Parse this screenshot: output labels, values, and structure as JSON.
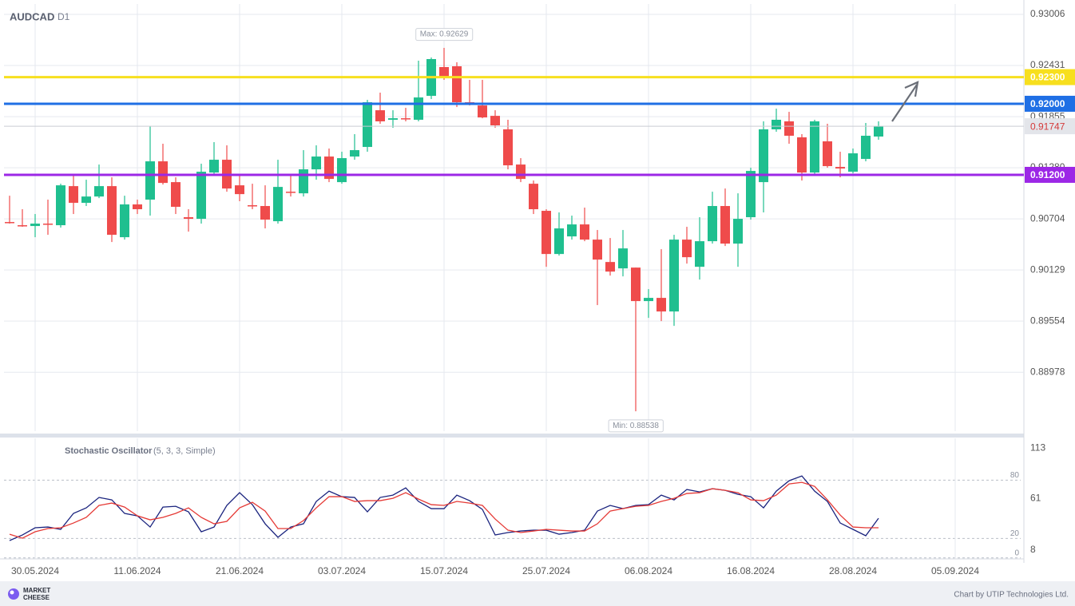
{
  "chart_data": [
    {
      "type": "candlestick",
      "title": "AUDCAD",
      "subtitle": "D1",
      "open": [
        0.90669,
        0.90633,
        0.90624,
        0.90651,
        0.90633,
        0.91073,
        0.90885,
        0.90956,
        0.91073,
        0.90498,
        0.90867,
        0.90921,
        0.91352,
        0.91118,
        0.90723,
        0.90705,
        0.91226,
        0.9137,
        0.91082,
        0.90858,
        0.90849,
        0.90678,
        0.9101,
        0.90992,
        0.91262,
        0.91406,
        0.91118,
        0.91406,
        0.91514,
        0.91927,
        0.9182,
        0.91837,
        0.9182,
        0.92089,
        0.92413,
        0.92422,
        0.92017,
        0.91981,
        0.91864,
        0.91712,
        0.91316,
        0.911,
        0.90795,
        0.90309,
        0.90507,
        0.90642,
        0.90471,
        0.90219,
        0.90147,
        0.90156,
        0.89779,
        0.89815,
        0.89662,
        0.90471,
        0.90165,
        0.90453,
        0.90849,
        0.90426,
        0.90723,
        0.91118,
        0.91712,
        0.91802,
        0.91622,
        0.91226,
        0.91577,
        0.91289,
        0.91235,
        0.91379,
        0.91631
      ],
      "high": [
        0.90965,
        0.90813,
        0.90759,
        0.90921,
        0.911,
        0.91208,
        0.91145,
        0.91316,
        0.91172,
        0.90965,
        0.90921,
        0.91748,
        0.9155,
        0.91172,
        0.90813,
        0.91325,
        0.91568,
        0.91532,
        0.9119,
        0.911,
        0.91082,
        0.9137,
        0.9119,
        0.91478,
        0.91532,
        0.91496,
        0.9146,
        0.91658,
        0.92044,
        0.92125,
        0.91927,
        0.91954,
        0.92485,
        0.92521,
        0.92629,
        0.92467,
        0.92269,
        0.92269,
        0.91927,
        0.9182,
        0.91388,
        0.91136,
        0.90813,
        0.90777,
        0.90741,
        0.90831,
        0.90579,
        0.90489,
        0.90579,
        0.90156,
        0.89914,
        0.90363,
        0.90525,
        0.90615,
        0.90723,
        0.9101,
        0.91046,
        0.90992,
        0.9128,
        0.91802,
        0.91945,
        0.91909,
        0.91658,
        0.9182,
        0.91775,
        0.9146,
        0.91496,
        0.91784,
        0.91802
      ],
      "low": [
        0.90651,
        0.90615,
        0.90498,
        0.90525,
        0.90606,
        0.90759,
        0.90849,
        0.90938,
        0.90444,
        0.90471,
        0.90759,
        0.90741,
        0.91091,
        0.90759,
        0.90561,
        0.90651,
        0.91208,
        0.9101,
        0.90903,
        0.90813,
        0.90597,
        0.90651,
        0.90956,
        0.90956,
        0.91145,
        0.91118,
        0.911,
        0.9137,
        0.9146,
        0.91775,
        0.9173,
        0.91802,
        0.91802,
        0.92053,
        0.92269,
        0.91963,
        0.91981,
        0.91837,
        0.9173,
        0.91262,
        0.91118,
        0.90759,
        0.90165,
        0.90291,
        0.90471,
        0.90453,
        0.89734,
        0.90066,
        0.90057,
        0.88538,
        0.8959,
        0.89554,
        0.895,
        0.90201,
        0.90021,
        0.90426,
        0.90399,
        0.90165,
        0.90696,
        0.90777,
        0.91685,
        0.9155,
        0.91136,
        0.91208,
        0.9128,
        0.91172,
        0.91217,
        0.91352,
        0.91595
      ],
      "close": [
        0.9066,
        0.90631,
        0.90651,
        0.90642,
        0.91082,
        0.90885,
        0.90956,
        0.91073,
        0.90525,
        0.90867,
        0.90813,
        0.91352,
        0.91109,
        0.9084,
        0.90705,
        0.91235,
        0.9137,
        0.91046,
        0.90983,
        0.90849,
        0.90696,
        0.91064,
        0.91001,
        0.91262,
        0.91406,
        0.91154,
        0.91388,
        0.91478,
        0.92017,
        0.91802,
        0.91837,
        0.91828,
        0.92071,
        0.92503,
        0.92305,
        0.92017,
        0.92008,
        0.91846,
        0.91757,
        0.91307,
        0.91154,
        0.90813,
        0.90309,
        0.90597,
        0.90642,
        0.90471,
        0.90246,
        0.90111,
        0.90372,
        0.89779,
        0.89815,
        0.89662,
        0.90471,
        0.90273,
        0.90453,
        0.90849,
        0.90426,
        0.90705,
        0.91244,
        0.91712,
        0.9182,
        0.9164,
        0.91226,
        0.91802,
        0.91298,
        0.91271,
        0.91442,
        0.9164,
        0.91747
      ],
      "up_color": "#1fbf8f",
      "down_color": "#ef4b4b",
      "xlim": [
        -0.4375,
        79.375
      ],
      "ylim": [
        0.88315,
        0.93123
      ],
      "yticks": [
        0.93006,
        0.92431,
        0.91855,
        {
          "value": 0.9128,
          "label": "0.91280"
        },
        0.90704,
        0.90129,
        0.89554,
        0.88978
      ],
      "lines": [
        {
          "value": 0.923,
          "label": "0.92300",
          "color": "#f7df1e"
        },
        {
          "value": 0.92,
          "label": "0.92000",
          "color": "#1f6fe5"
        },
        {
          "value": 0.912,
          "label": "0.91200",
          "color": "#9c27e6"
        }
      ],
      "last_price": 0.91747,
      "annotations": [
        "Max: 0.92629",
        "Min: 0.88538"
      ],
      "grid": true
    },
    {
      "type": "line",
      "title": "Stochastic Oscillator",
      "subtitle": "(5, 3, 3, Simple)",
      "series": [
        {
          "color": "#1a237e",
          "values": [
            17.9,
            23.6,
            31.0,
            31.8,
            29.4,
            45.8,
            51.5,
            62.2,
            59.7,
            45.8,
            43.3,
            31.8,
            52.3,
            53.1,
            47.4,
            26.9,
            31.8,
            54.0,
            67.1,
            54.8,
            35.1,
            21.2,
            31.8,
            35.1,
            58.1,
            68.7,
            63.0,
            62.2,
            47.4,
            62.2,
            64.6,
            72.0,
            58.1,
            50.7,
            50.7,
            64.6,
            58.9,
            49.9,
            23.6,
            26.1,
            27.7,
            28.5,
            28.5,
            24.4,
            26.1,
            28.5,
            48.2,
            54.0,
            50.7,
            54.0,
            54.8,
            64.6,
            59.7,
            70.4,
            67.9,
            71.2,
            69.5,
            65.4,
            63.0,
            51.5,
            68.7,
            79.4,
            84.3,
            68.7,
            58.1,
            35.9,
            29.4,
            22.8,
            40.8
          ]
        },
        {
          "color": "#e53935",
          "values": [
            24.4,
            20.3,
            26.9,
            30.2,
            31.0,
            35.9,
            41.7,
            54.0,
            56.4,
            52.3,
            43.3,
            39.2,
            41.7,
            45.8,
            51.5,
            41.7,
            35.1,
            37.6,
            51.5,
            57.2,
            48.2,
            30.2,
            30.2,
            38.4,
            51.5,
            63.0,
            63.0,
            58.1,
            58.9,
            58.9,
            61.3,
            67.1,
            60.5,
            54.8,
            54.0,
            58.1,
            56.4,
            54.0,
            40.0,
            28.5,
            26.1,
            27.7,
            29.4,
            28.5,
            27.7,
            27.7,
            35.1,
            48.2,
            50.7,
            53.1,
            54.0,
            58.1,
            61.3,
            66.3,
            67.1,
            71.2,
            69.5,
            67.1,
            59.7,
            58.9,
            64.6,
            76.1,
            77.7,
            73.6,
            59.7,
            44.1,
            31.8,
            31.0,
            31.0
          ]
        }
      ],
      "xlim": [
        -0.4375,
        79.375
      ],
      "ylim": [
        -1,
        123
      ],
      "yticks": [
        113,
        61,
        8
      ],
      "levels": [
        80,
        20,
        0
      ],
      "xticks": [
        {
          "value": 2,
          "label": "30.05.2024"
        },
        {
          "value": 10,
          "label": "11.06.2024"
        },
        {
          "value": 18,
          "label": "21.06.2024"
        },
        {
          "value": 26,
          "label": "03.07.2024"
        },
        {
          "value": 34,
          "label": "15.07.2024"
        },
        {
          "value": 42,
          "label": "25.07.2024"
        },
        {
          "value": 50,
          "label": "06.08.2024"
        },
        {
          "value": 58,
          "label": "16.08.2024"
        },
        {
          "value": 66,
          "label": "28.08.2024"
        },
        {
          "value": 74,
          "label": "05.09.2024"
        }
      ]
    }
  ],
  "footer": {
    "logo": [
      "MARKET",
      "CHEESE"
    ],
    "credit": "Chart by UTIP Technologies Ltd."
  }
}
